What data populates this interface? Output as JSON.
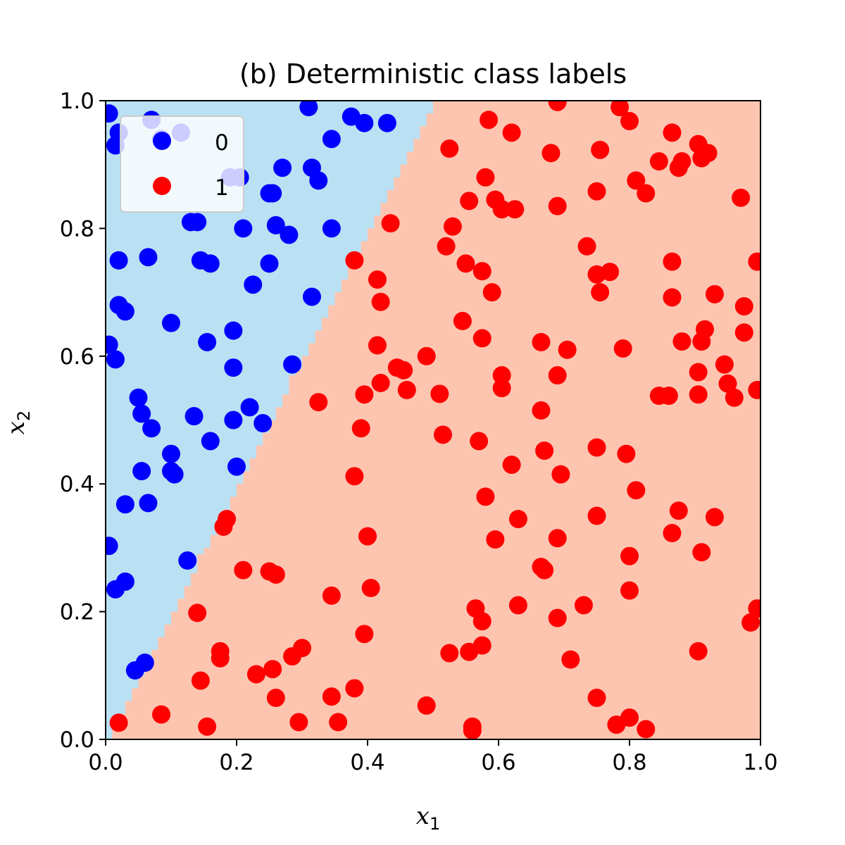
{
  "chart_data": {
    "type": "scatter",
    "title": "(b) Deterministic class labels",
    "xlabel": "x",
    "xlabel_sub": "1",
    "ylabel": "x",
    "ylabel_sub": "2",
    "xlim": [
      0.0,
      1.0
    ],
    "ylim": [
      0.0,
      1.0
    ],
    "xticks": [
      "0.0",
      "0.2",
      "0.4",
      "0.6",
      "0.8",
      "1.0"
    ],
    "yticks": [
      "0.0",
      "0.2",
      "0.4",
      "0.6",
      "0.8",
      "1.0"
    ],
    "grid": false,
    "legend_position": "top-left",
    "decision_boundary": {
      "description": "line x2 = 2*x1",
      "slope": 2.0,
      "intercept": 0.0,
      "region_colors": {
        "0": "#bae0f3",
        "1": "#fdc5b0"
      }
    },
    "series": [
      {
        "name": "0",
        "color": "#0000ff",
        "points": [
          [
            0.005,
            0.98
          ],
          [
            0.02,
            0.95
          ],
          [
            0.07,
            0.97
          ],
          [
            0.085,
            0.94
          ],
          [
            0.115,
            0.95
          ],
          [
            0.015,
            0.93
          ],
          [
            0.31,
            0.99
          ],
          [
            0.375,
            0.975
          ],
          [
            0.395,
            0.965
          ],
          [
            0.43,
            0.965
          ],
          [
            0.345,
            0.94
          ],
          [
            0.27,
            0.895
          ],
          [
            0.315,
            0.895
          ],
          [
            0.325,
            0.875
          ],
          [
            0.19,
            0.88
          ],
          [
            0.205,
            0.88
          ],
          [
            0.25,
            0.855
          ],
          [
            0.255,
            0.855
          ],
          [
            0.13,
            0.81
          ],
          [
            0.14,
            0.81
          ],
          [
            0.21,
            0.8
          ],
          [
            0.26,
            0.805
          ],
          [
            0.28,
            0.79
          ],
          [
            0.345,
            0.8
          ],
          [
            0.02,
            0.75
          ],
          [
            0.065,
            0.755
          ],
          [
            0.145,
            0.75
          ],
          [
            0.16,
            0.745
          ],
          [
            0.25,
            0.745
          ],
          [
            0.225,
            0.712
          ],
          [
            0.315,
            0.693
          ],
          [
            0.02,
            0.68
          ],
          [
            0.03,
            0.67
          ],
          [
            0.1,
            0.652
          ],
          [
            0.195,
            0.64
          ],
          [
            0.155,
            0.622
          ],
          [
            0.005,
            0.618
          ],
          [
            0.015,
            0.595
          ],
          [
            0.195,
            0.582
          ],
          [
            0.285,
            0.587
          ],
          [
            0.05,
            0.535
          ],
          [
            0.055,
            0.51
          ],
          [
            0.07,
            0.487
          ],
          [
            0.135,
            0.506
          ],
          [
            0.22,
            0.52
          ],
          [
            0.195,
            0.5
          ],
          [
            0.24,
            0.495
          ],
          [
            0.16,
            0.467
          ],
          [
            0.1,
            0.447
          ],
          [
            0.1,
            0.42
          ],
          [
            0.105,
            0.415
          ],
          [
            0.055,
            0.42
          ],
          [
            0.2,
            0.427
          ],
          [
            0.03,
            0.368
          ],
          [
            0.065,
            0.37
          ],
          [
            0.005,
            0.303
          ],
          [
            0.125,
            0.28
          ],
          [
            0.015,
            0.235
          ],
          [
            0.03,
            0.247
          ],
          [
            0.045,
            0.108
          ],
          [
            0.06,
            0.12
          ]
        ]
      },
      {
        "name": "1",
        "color": "#ff0000",
        "points": [
          [
            0.69,
            0.998
          ],
          [
            0.785,
            0.99
          ],
          [
            0.8,
            0.968
          ],
          [
            0.585,
            0.97
          ],
          [
            0.62,
            0.95
          ],
          [
            0.865,
            0.95
          ],
          [
            0.905,
            0.932
          ],
          [
            0.525,
            0.925
          ],
          [
            0.68,
            0.918
          ],
          [
            0.755,
            0.923
          ],
          [
            0.92,
            0.918
          ],
          [
            0.91,
            0.91
          ],
          [
            0.845,
            0.905
          ],
          [
            0.88,
            0.905
          ],
          [
            0.875,
            0.895
          ],
          [
            0.58,
            0.88
          ],
          [
            0.81,
            0.875
          ],
          [
            0.825,
            0.855
          ],
          [
            0.75,
            0.858
          ],
          [
            0.555,
            0.843
          ],
          [
            0.595,
            0.845
          ],
          [
            0.605,
            0.83
          ],
          [
            0.625,
            0.83
          ],
          [
            0.69,
            0.835
          ],
          [
            0.97,
            0.848
          ],
          [
            0.435,
            0.808
          ],
          [
            0.53,
            0.803
          ],
          [
            0.52,
            0.772
          ],
          [
            0.735,
            0.772
          ],
          [
            0.38,
            0.75
          ],
          [
            0.55,
            0.745
          ],
          [
            0.575,
            0.733
          ],
          [
            0.75,
            0.728
          ],
          [
            0.77,
            0.732
          ],
          [
            0.865,
            0.748
          ],
          [
            0.995,
            0.748
          ],
          [
            0.415,
            0.72
          ],
          [
            0.59,
            0.7
          ],
          [
            0.755,
            0.7
          ],
          [
            0.865,
            0.692
          ],
          [
            0.93,
            0.697
          ],
          [
            0.975,
            0.678
          ],
          [
            0.42,
            0.685
          ],
          [
            0.545,
            0.655
          ],
          [
            0.575,
            0.628
          ],
          [
            0.415,
            0.617
          ],
          [
            0.665,
            0.622
          ],
          [
            0.705,
            0.61
          ],
          [
            0.79,
            0.612
          ],
          [
            0.88,
            0.623
          ],
          [
            0.91,
            0.623
          ],
          [
            0.915,
            0.642
          ],
          [
            0.975,
            0.637
          ],
          [
            0.49,
            0.6
          ],
          [
            0.445,
            0.582
          ],
          [
            0.455,
            0.578
          ],
          [
            0.605,
            0.57
          ],
          [
            0.69,
            0.57
          ],
          [
            0.905,
            0.575
          ],
          [
            0.945,
            0.587
          ],
          [
            0.95,
            0.557
          ],
          [
            0.96,
            0.535
          ],
          [
            0.995,
            0.547
          ],
          [
            0.42,
            0.558
          ],
          [
            0.46,
            0.547
          ],
          [
            0.395,
            0.54
          ],
          [
            0.51,
            0.541
          ],
          [
            0.605,
            0.55
          ],
          [
            0.325,
            0.528
          ],
          [
            0.845,
            0.538
          ],
          [
            0.86,
            0.538
          ],
          [
            0.905,
            0.54
          ],
          [
            0.665,
            0.515
          ],
          [
            0.39,
            0.487
          ],
          [
            0.515,
            0.477
          ],
          [
            0.57,
            0.467
          ],
          [
            0.67,
            0.452
          ],
          [
            0.75,
            0.457
          ],
          [
            0.795,
            0.447
          ],
          [
            0.62,
            0.43
          ],
          [
            0.695,
            0.415
          ],
          [
            0.38,
            0.412
          ],
          [
            0.58,
            0.38
          ],
          [
            0.81,
            0.39
          ],
          [
            0.875,
            0.358
          ],
          [
            0.63,
            0.345
          ],
          [
            0.75,
            0.35
          ],
          [
            0.93,
            0.348
          ],
          [
            0.18,
            0.333
          ],
          [
            0.185,
            0.345
          ],
          [
            0.4,
            0.318
          ],
          [
            0.595,
            0.313
          ],
          [
            0.69,
            0.315
          ],
          [
            0.865,
            0.323
          ],
          [
            0.8,
            0.287
          ],
          [
            0.91,
            0.293
          ],
          [
            0.665,
            0.27
          ],
          [
            0.67,
            0.265
          ],
          [
            0.21,
            0.265
          ],
          [
            0.25,
            0.263
          ],
          [
            0.26,
            0.258
          ],
          [
            0.405,
            0.237
          ],
          [
            0.8,
            0.233
          ],
          [
            0.345,
            0.225
          ],
          [
            0.63,
            0.21
          ],
          [
            0.73,
            0.21
          ],
          [
            0.565,
            0.205
          ],
          [
            0.995,
            0.205
          ],
          [
            0.14,
            0.198
          ],
          [
            0.575,
            0.185
          ],
          [
            0.69,
            0.19
          ],
          [
            0.985,
            0.183
          ],
          [
            0.395,
            0.165
          ],
          [
            0.175,
            0.138
          ],
          [
            0.3,
            0.143
          ],
          [
            0.175,
            0.127
          ],
          [
            0.285,
            0.13
          ],
          [
            0.525,
            0.135
          ],
          [
            0.555,
            0.137
          ],
          [
            0.575,
            0.147
          ],
          [
            0.71,
            0.125
          ],
          [
            0.905,
            0.138
          ],
          [
            0.255,
            0.11
          ],
          [
            0.23,
            0.102
          ],
          [
            0.145,
            0.092
          ],
          [
            0.38,
            0.08
          ],
          [
            0.26,
            0.065
          ],
          [
            0.345,
            0.067
          ],
          [
            0.75,
            0.065
          ],
          [
            0.49,
            0.053
          ],
          [
            0.085,
            0.039
          ],
          [
            0.02,
            0.026
          ],
          [
            0.155,
            0.02
          ],
          [
            0.295,
            0.027
          ],
          [
            0.355,
            0.027
          ],
          [
            0.56,
            0.02
          ],
          [
            0.56,
            0.014
          ],
          [
            0.78,
            0.023
          ],
          [
            0.8,
            0.034
          ],
          [
            0.825,
            0.016
          ]
        ]
      }
    ]
  }
}
